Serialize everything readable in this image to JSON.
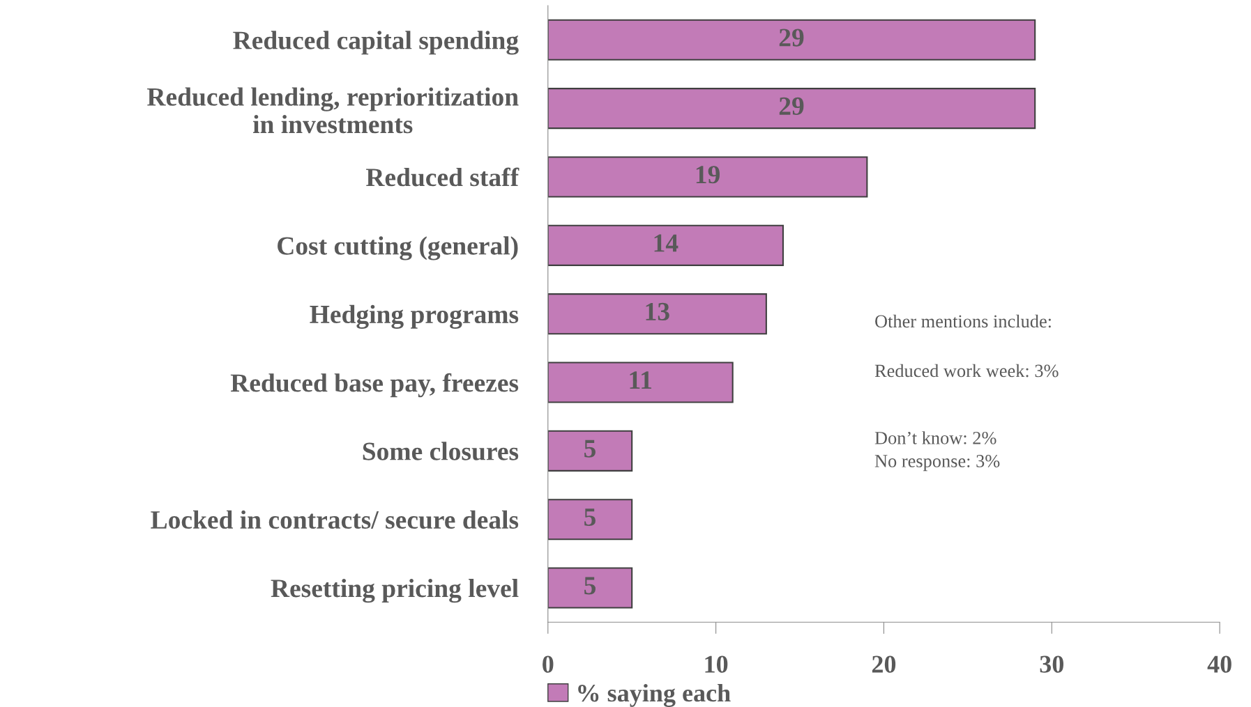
{
  "chart_data": {
    "type": "bar",
    "orientation": "horizontal",
    "categories": [
      "Reduced capital spending",
      "Reduced lending, reprioritization\nin investments",
      "Reduced staff",
      "Cost cutting (general)",
      "Hedging programs",
      "Reduced base pay, freezes",
      "Some closures",
      "Locked in contracts/ secure deals",
      "Resetting pricing level"
    ],
    "series": [
      {
        "name": "% saying each",
        "color": "#c27bb7",
        "values": [
          29,
          29,
          19,
          14,
          13,
          11,
          5,
          5,
          5
        ]
      }
    ],
    "xlim": [
      0,
      40
    ],
    "xticks": [
      0,
      10,
      20,
      30,
      40
    ],
    "data_labels": true,
    "grid": false,
    "legend": "bottom",
    "annotations": [
      "Other mentions include:",
      "Reduced work week: 3%",
      "Don’t know: 2%\nNo response: 3%"
    ]
  }
}
